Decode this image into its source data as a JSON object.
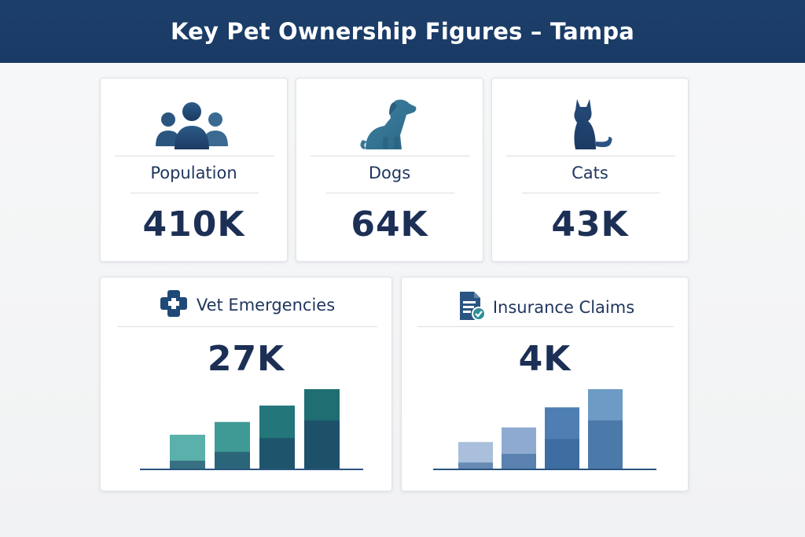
{
  "header": {
    "title": "Key Pet Ownership Figures – Tampa"
  },
  "cards": [
    {
      "label": "Population",
      "value": "410K",
      "icon": "people-icon"
    },
    {
      "label": "Dogs",
      "value": "64K",
      "icon": "dog-icon"
    },
    {
      "label": "Cats",
      "value": "43K",
      "icon": "cat-icon"
    }
  ],
  "vet": {
    "label": "Vet Emergencies",
    "value": "27K",
    "icon": "medical-cross-icon",
    "bar_colors": [
      "#5ab0aa",
      "#3f9a95",
      "#23767a",
      "#1f6e72"
    ],
    "overlay_color": "#1c3a63"
  },
  "insurance": {
    "label": "Insurance Claims",
    "value": "4K",
    "icon": "document-check-icon",
    "bar_colors": [
      "#a9bfdb",
      "#8faad0",
      "#4f7fb2",
      "#6e9bc6"
    ],
    "overlay_color": "#2f5f93"
  },
  "chart_data": [
    {
      "type": "bar",
      "series": [
        {
          "values": [
            0.38,
            0.52,
            0.7,
            0.88
          ]
        }
      ]
    },
    {
      "type": "bar",
      "series": [
        {
          "values": [
            0.3,
            0.46,
            0.68,
            0.88
          ]
        }
      ]
    }
  ]
}
